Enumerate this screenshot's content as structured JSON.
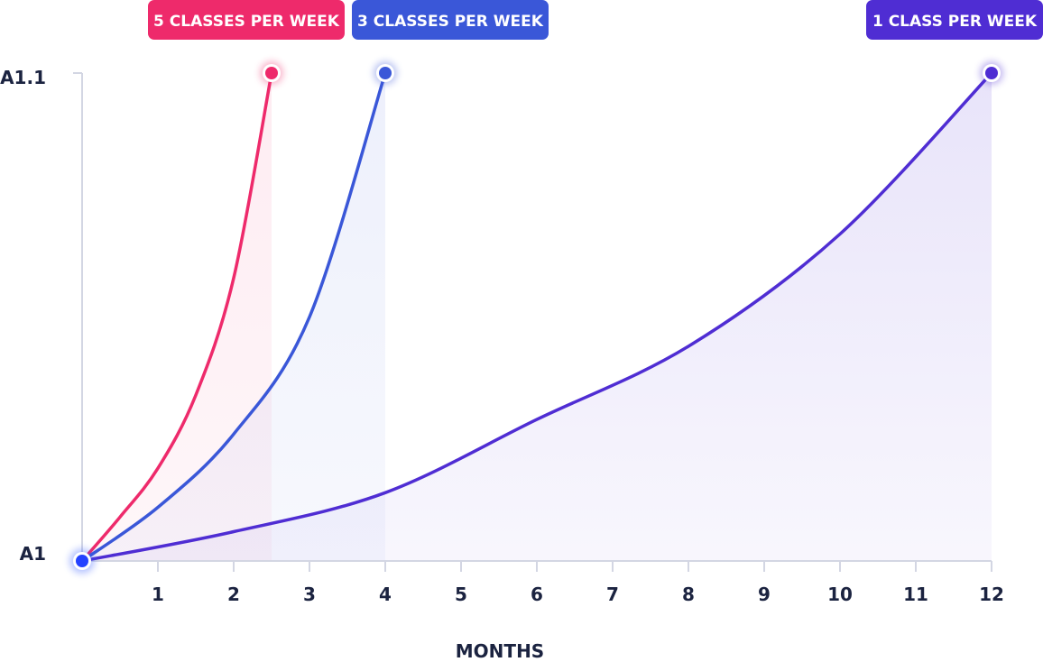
{
  "chart_data": {
    "type": "line",
    "xlabel": "MONTHS",
    "ylabel": "",
    "x_ticks": [
      1,
      2,
      3,
      4,
      5,
      6,
      7,
      8,
      9,
      10,
      11,
      12
    ],
    "xlim": [
      0,
      12
    ],
    "y_levels": [
      "A1",
      "A1.1"
    ],
    "grid": false,
    "legend": "badges above curve endpoints",
    "start_point": {
      "x": 0,
      "y": "A1"
    },
    "series": [
      {
        "name": "5 CLASSES PER WEEK",
        "color": "#ee2a6b",
        "x_end": 2.5,
        "points": [
          {
            "x": 0,
            "y": 0
          },
          {
            "x": 0.5,
            "y": 0.09
          },
          {
            "x": 1.0,
            "y": 0.19
          },
          {
            "x": 1.5,
            "y": 0.34
          },
          {
            "x": 2.0,
            "y": 0.58
          },
          {
            "x": 2.5,
            "y": 1.0
          }
        ]
      },
      {
        "name": "3 CLASSES PER WEEK",
        "color": "#3a57d8",
        "x_end": 4,
        "points": [
          {
            "x": 0,
            "y": 0
          },
          {
            "x": 1,
            "y": 0.11
          },
          {
            "x": 2,
            "y": 0.26
          },
          {
            "x": 3,
            "y": 0.5
          },
          {
            "x": 4,
            "y": 1.0
          }
        ]
      },
      {
        "name": "1 CLASS PER WEEK",
        "color": "#4f2dd3",
        "x_end": 12,
        "points": [
          {
            "x": 0,
            "y": 0
          },
          {
            "x": 2,
            "y": 0.06
          },
          {
            "x": 4,
            "y": 0.14
          },
          {
            "x": 6,
            "y": 0.29
          },
          {
            "x": 8,
            "y": 0.44
          },
          {
            "x": 10,
            "y": 0.67
          },
          {
            "x": 12,
            "y": 1.0
          }
        ]
      }
    ]
  }
}
